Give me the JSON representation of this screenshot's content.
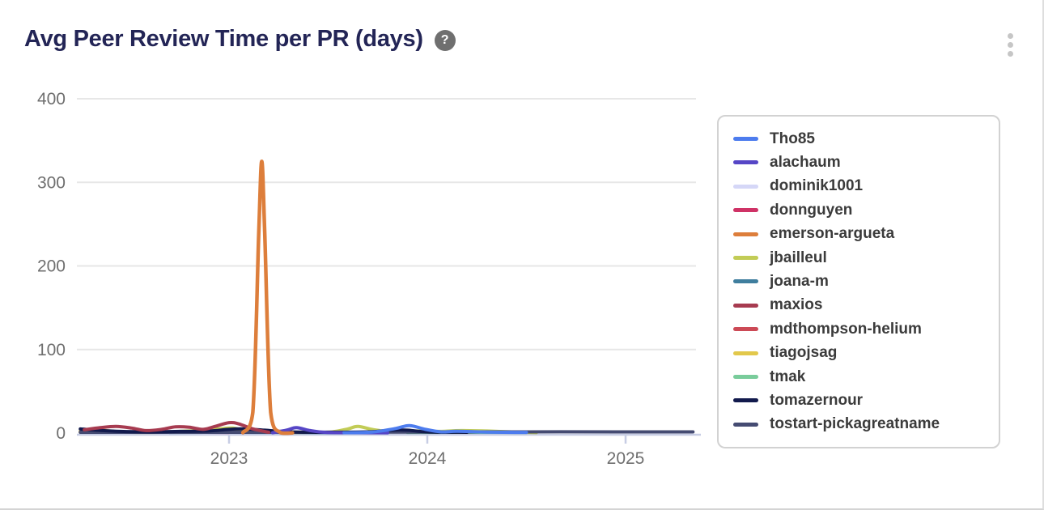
{
  "header": {
    "title": "Avg Peer Review Time per PR (days)",
    "help_glyph": "?"
  },
  "chart_data": {
    "type": "line",
    "title": "Avg Peer Review Time per PR (days)",
    "xlabel": "",
    "ylabel": "days",
    "x_tick_labels": [
      "2023",
      "2024",
      "2025"
    ],
    "x_ticks": [
      2023,
      2024,
      2025
    ],
    "y_ticks": [
      0,
      100,
      200,
      300,
      400
    ],
    "xlim": [
      2022.25,
      2025.35
    ],
    "ylim": [
      0,
      400
    ],
    "grid": "horizontal",
    "legend_position": "right",
    "colors": {
      "title": "#232556",
      "axis_line": "#c7cde4",
      "grid_line": "#e7e7e7",
      "tick_label": "#6f6f6f"
    },
    "series": [
      {
        "name": "Tho85",
        "color": "#4d7cee",
        "points": [
          [
            2023.58,
            0.5
          ],
          [
            2023.72,
            1.2
          ],
          [
            2023.84,
            5.5
          ],
          [
            2023.91,
            9
          ],
          [
            2023.99,
            4.5
          ],
          [
            2024.07,
            1.5
          ],
          [
            2024.15,
            2.2
          ],
          [
            2024.3,
            1.2
          ],
          [
            2024.5,
            0.8
          ]
        ]
      },
      {
        "name": "alachaum",
        "color": "#5646c6",
        "points": [
          [
            2023.22,
            0.5
          ],
          [
            2023.29,
            3.5
          ],
          [
            2023.34,
            6.5
          ],
          [
            2023.41,
            3
          ],
          [
            2023.49,
            0.8
          ],
          [
            2023.62,
            0.5
          ],
          [
            2023.8,
            0.4
          ]
        ]
      },
      {
        "name": "dominik1001",
        "color": "#d5d7f7",
        "points": [
          [
            2022.25,
            1
          ],
          [
            2022.6,
            0.8
          ],
          [
            2023.0,
            0.8
          ],
          [
            2023.3,
            0.6
          ]
        ]
      },
      {
        "name": "donnguyen",
        "color": "#cf3266",
        "points": [
          [
            2022.25,
            1.5
          ],
          [
            2022.5,
            1
          ],
          [
            2022.8,
            1
          ],
          [
            2023.0,
            0.8
          ]
        ]
      },
      {
        "name": "emerson-argueta",
        "color": "#dd7e3b",
        "points": [
          [
            2023.07,
            0.5
          ],
          [
            2023.12,
            25
          ],
          [
            2023.15,
            240
          ],
          [
            2023.165,
            325
          ],
          [
            2023.18,
            240
          ],
          [
            2023.21,
            25
          ],
          [
            2023.26,
            0.5
          ],
          [
            2023.32,
            0.3
          ]
        ]
      },
      {
        "name": "jbailleul",
        "color": "#c2cc56",
        "points": [
          [
            2022.25,
            1
          ],
          [
            2022.35,
            2.5
          ],
          [
            2022.5,
            1
          ],
          [
            2022.65,
            1
          ],
          [
            2022.8,
            2.5
          ],
          [
            2022.95,
            5
          ],
          [
            2023.02,
            6
          ],
          [
            2023.1,
            2
          ],
          [
            2023.25,
            1
          ],
          [
            2023.42,
            1
          ],
          [
            2023.52,
            1.5
          ],
          [
            2023.6,
            5
          ],
          [
            2023.65,
            8
          ],
          [
            2023.73,
            4
          ],
          [
            2023.83,
            1.5
          ],
          [
            2023.95,
            2.5
          ],
          [
            2024.05,
            2
          ],
          [
            2024.17,
            3
          ],
          [
            2024.3,
            2.5
          ],
          [
            2024.45,
            1.2
          ],
          [
            2024.55,
            0.6
          ]
        ]
      },
      {
        "name": "joana-m",
        "color": "#3f7e9e",
        "points": [
          [
            2022.7,
            0.8
          ],
          [
            2023.0,
            1
          ],
          [
            2023.3,
            0.8
          ],
          [
            2023.6,
            0.6
          ]
        ]
      },
      {
        "name": "maxios",
        "color": "#a73b50",
        "points": [
          [
            2022.27,
            4
          ],
          [
            2022.35,
            6.5
          ],
          [
            2022.43,
            8
          ],
          [
            2022.51,
            6
          ],
          [
            2022.58,
            3
          ],
          [
            2022.66,
            4.5
          ],
          [
            2022.73,
            7.5
          ],
          [
            2022.8,
            7
          ],
          [
            2022.87,
            4.5
          ],
          [
            2022.93,
            8
          ],
          [
            2023.0,
            12.5
          ],
          [
            2023.05,
            11
          ],
          [
            2023.12,
            5
          ],
          [
            2023.2,
            1
          ]
        ]
      },
      {
        "name": "mdthompson-helium",
        "color": "#cc4a56",
        "points": [
          [
            2022.3,
            2
          ],
          [
            2022.45,
            1
          ],
          [
            2022.6,
            2.5
          ],
          [
            2022.75,
            1
          ],
          [
            2022.9,
            1.5
          ]
        ]
      },
      {
        "name": "tiagojsag",
        "color": "#e2c84b",
        "points": [
          [
            2022.25,
            2
          ],
          [
            2022.35,
            3.5
          ],
          [
            2022.45,
            1.5
          ],
          [
            2022.6,
            1
          ],
          [
            2022.9,
            3
          ],
          [
            2023.0,
            4
          ],
          [
            2023.1,
            1
          ]
        ]
      },
      {
        "name": "tmak",
        "color": "#79cc9b",
        "points": [
          [
            2023.9,
            0.8
          ],
          [
            2024.2,
            1
          ],
          [
            2024.5,
            0.8
          ]
        ]
      },
      {
        "name": "tomazernour",
        "color": "#121a4d",
        "points": [
          [
            2022.25,
            5
          ],
          [
            2022.33,
            3.5
          ],
          [
            2022.45,
            2
          ],
          [
            2022.6,
            1.5
          ],
          [
            2022.75,
            2
          ],
          [
            2022.9,
            2.5
          ],
          [
            2023.0,
            4.5
          ],
          [
            2023.08,
            5
          ],
          [
            2023.18,
            3.5
          ],
          [
            2023.3,
            1.5
          ],
          [
            2023.5,
            1
          ],
          [
            2023.7,
            1.5
          ],
          [
            2023.82,
            3.5
          ],
          [
            2023.9,
            3.5
          ],
          [
            2024.0,
            1.5
          ],
          [
            2024.2,
            1
          ]
        ]
      },
      {
        "name": "tostart-pickagreatname",
        "color": "#454b72",
        "points": [
          [
            2022.25,
            1
          ],
          [
            2023.0,
            1
          ],
          [
            2024.0,
            1.2
          ],
          [
            2024.5,
            1.5
          ],
          [
            2025.0,
            1.5
          ],
          [
            2025.34,
            1.5
          ]
        ]
      }
    ]
  }
}
